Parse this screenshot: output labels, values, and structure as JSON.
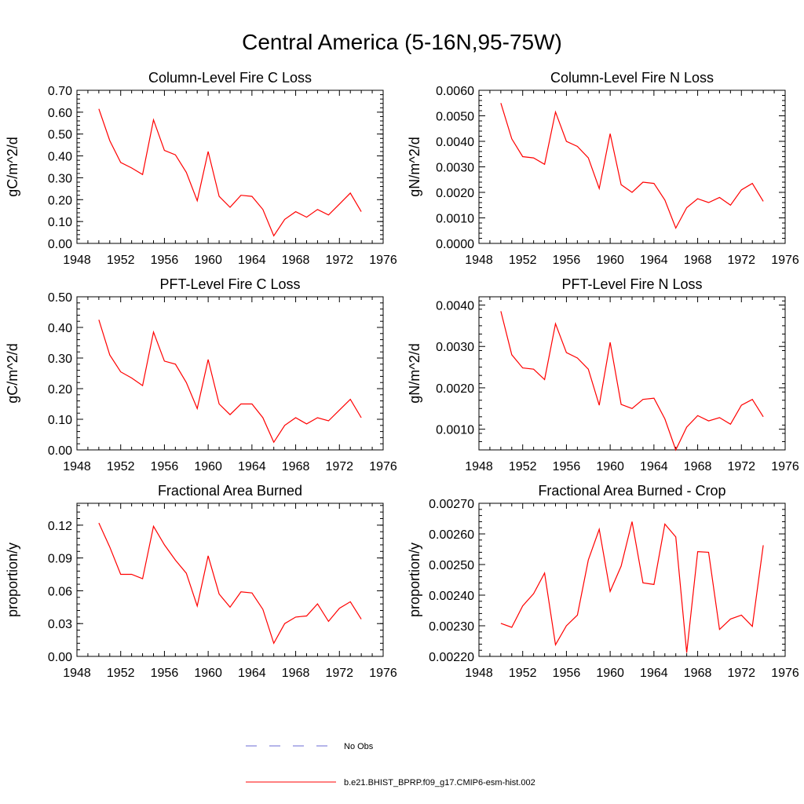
{
  "figure_title": "Central America (5-16N,95-75W)",
  "colors": {
    "model": "#ff0000",
    "obs": "#6b6bd6",
    "axis": "#000000"
  },
  "legend": {
    "items": [
      {
        "label": "No Obs",
        "style": "dashed"
      },
      {
        "label": "b.e21.BHIST_BPRP.f09_g17.CMIP6-esm-hist.002",
        "style": "solid"
      }
    ]
  },
  "chart_data": [
    {
      "type": "line",
      "title": "Column-Level Fire C Loss",
      "ylabel": "gC/m^2/d",
      "xlim": [
        1948,
        1976
      ],
      "xticks": [
        "1948",
        "1952",
        "1956",
        "1960",
        "1964",
        "1968",
        "1972",
        "1976"
      ],
      "ylim": [
        0,
        0.7
      ],
      "yticks": [
        "0.00",
        "0.10",
        "0.20",
        "0.30",
        "0.40",
        "0.50",
        "0.60",
        "0.70"
      ],
      "ytick_values": [
        0,
        0.1,
        0.2,
        0.3,
        0.4,
        0.5,
        0.6,
        0.7
      ],
      "x": [
        1950,
        1951,
        1952,
        1953,
        1954,
        1955,
        1956,
        1957,
        1958,
        1959,
        1960,
        1961,
        1962,
        1963,
        1964,
        1965,
        1966,
        1967,
        1968,
        1969,
        1970,
        1971,
        1972,
        1973,
        1974
      ],
      "series": [
        {
          "values": [
            0.615,
            0.47,
            0.37,
            0.345,
            0.315,
            0.565,
            0.425,
            0.405,
            0.325,
            0.195,
            0.42,
            0.215,
            0.165,
            0.22,
            0.215,
            0.155,
            0.035,
            0.11,
            0.145,
            0.12,
            0.155,
            0.13,
            0.18,
            0.23,
            0.145
          ]
        }
      ]
    },
    {
      "type": "line",
      "title": "Column-Level Fire N Loss",
      "ylabel": "gN/m^2/d",
      "xlim": [
        1948,
        1976
      ],
      "xticks": [
        "1948",
        "1952",
        "1956",
        "1960",
        "1964",
        "1968",
        "1972",
        "1976"
      ],
      "ylim": [
        0,
        0.006
      ],
      "yticks": [
        "0.0000",
        "0.0010",
        "0.0020",
        "0.0030",
        "0.0040",
        "0.0050",
        "0.0060"
      ],
      "ytick_values": [
        0,
        0.001,
        0.002,
        0.003,
        0.004,
        0.005,
        0.006
      ],
      "x": [
        1950,
        1951,
        1952,
        1953,
        1954,
        1955,
        1956,
        1957,
        1958,
        1959,
        1960,
        1961,
        1962,
        1963,
        1964,
        1965,
        1966,
        1967,
        1968,
        1969,
        1970,
        1971,
        1972,
        1973,
        1974
      ],
      "series": [
        {
          "values": [
            0.0055,
            0.0041,
            0.0034,
            0.00335,
            0.0031,
            0.00515,
            0.004,
            0.0038,
            0.00335,
            0.00215,
            0.0043,
            0.0023,
            0.002,
            0.0024,
            0.00235,
            0.0017,
            0.0006,
            0.0014,
            0.00175,
            0.0016,
            0.0018,
            0.0015,
            0.0021,
            0.00235,
            0.00165
          ]
        }
      ]
    },
    {
      "type": "line",
      "title": "PFT-Level Fire C Loss",
      "ylabel": "gC/m^2/d",
      "xlim": [
        1948,
        1976
      ],
      "xticks": [
        "1948",
        "1952",
        "1956",
        "1960",
        "1964",
        "1968",
        "1972",
        "1976"
      ],
      "ylim": [
        0,
        0.5
      ],
      "yticks": [
        "0.00",
        "0.10",
        "0.20",
        "0.30",
        "0.40",
        "0.50"
      ],
      "ytick_values": [
        0,
        0.1,
        0.2,
        0.3,
        0.4,
        0.5
      ],
      "x": [
        1950,
        1951,
        1952,
        1953,
        1954,
        1955,
        1956,
        1957,
        1958,
        1959,
        1960,
        1961,
        1962,
        1963,
        1964,
        1965,
        1966,
        1967,
        1968,
        1969,
        1970,
        1971,
        1972,
        1973,
        1974
      ],
      "series": [
        {
          "values": [
            0.425,
            0.31,
            0.255,
            0.235,
            0.21,
            0.385,
            0.29,
            0.28,
            0.22,
            0.135,
            0.295,
            0.15,
            0.115,
            0.15,
            0.15,
            0.105,
            0.025,
            0.08,
            0.105,
            0.085,
            0.105,
            0.095,
            0.13,
            0.165,
            0.105
          ]
        }
      ]
    },
    {
      "type": "line",
      "title": "PFT-Level Fire N Loss",
      "ylabel": "gN/m^2/d",
      "xlim": [
        1948,
        1976
      ],
      "xticks": [
        "1948",
        "1952",
        "1956",
        "1960",
        "1964",
        "1968",
        "1972",
        "1976"
      ],
      "ylim": [
        0.0005,
        0.0042
      ],
      "yticks": [
        "0.0010",
        "0.0020",
        "0.0030",
        "0.0040"
      ],
      "ytick_values": [
        0.001,
        0.002,
        0.003,
        0.004
      ],
      "x": [
        1950,
        1951,
        1952,
        1953,
        1954,
        1955,
        1956,
        1957,
        1958,
        1959,
        1960,
        1961,
        1962,
        1963,
        1964,
        1965,
        1966,
        1967,
        1968,
        1969,
        1970,
        1971,
        1972,
        1973,
        1974
      ],
      "series": [
        {
          "values": [
            0.00385,
            0.0028,
            0.00248,
            0.00245,
            0.0022,
            0.00355,
            0.00285,
            0.00272,
            0.00245,
            0.00158,
            0.0031,
            0.0016,
            0.0015,
            0.00172,
            0.00175,
            0.00125,
            0.0005,
            0.00105,
            0.00133,
            0.0012,
            0.00128,
            0.00112,
            0.00158,
            0.00172,
            0.0013
          ]
        }
      ]
    },
    {
      "type": "line",
      "title": "Fractional Area Burned",
      "ylabel": "proportion/y",
      "xlim": [
        1948,
        1976
      ],
      "xticks": [
        "1948",
        "1952",
        "1956",
        "1960",
        "1964",
        "1968",
        "1972",
        "1976"
      ],
      "ylim": [
        0,
        0.14
      ],
      "yticks": [
        "0.00",
        "0.03",
        "0.06",
        "0.09",
        "0.12"
      ],
      "ytick_values": [
        0,
        0.03,
        0.06,
        0.09,
        0.12
      ],
      "x": [
        1950,
        1951,
        1952,
        1953,
        1954,
        1955,
        1956,
        1957,
        1958,
        1959,
        1960,
        1961,
        1962,
        1963,
        1964,
        1965,
        1966,
        1967,
        1968,
        1969,
        1970,
        1971,
        1972,
        1973,
        1974
      ],
      "series": [
        {
          "values": [
            0.122,
            0.1,
            0.075,
            0.075,
            0.071,
            0.119,
            0.102,
            0.088,
            0.076,
            0.046,
            0.092,
            0.057,
            0.045,
            0.059,
            0.058,
            0.043,
            0.012,
            0.03,
            0.036,
            0.037,
            0.048,
            0.032,
            0.044,
            0.05,
            0.034
          ]
        }
      ]
    },
    {
      "type": "line",
      "title": "Fractional Area Burned - Crop",
      "ylabel": "proportion/y",
      "xlim": [
        1948,
        1976
      ],
      "xticks": [
        "1948",
        "1952",
        "1956",
        "1960",
        "1964",
        "1968",
        "1972",
        "1976"
      ],
      "ylim": [
        0.0022,
        0.0027
      ],
      "yticks": [
        "0.00220",
        "0.00230",
        "0.00240",
        "0.00250",
        "0.00260",
        "0.00270"
      ],
      "ytick_values": [
        0.0022,
        0.0023,
        0.0024,
        0.0025,
        0.0026,
        0.0027
      ],
      "x": [
        1950,
        1951,
        1952,
        1953,
        1954,
        1955,
        1956,
        1957,
        1958,
        1959,
        1960,
        1961,
        1962,
        1963,
        1964,
        1965,
        1966,
        1967,
        1968,
        1969,
        1970,
        1971,
        1972,
        1973,
        1974
      ],
      "series": [
        {
          "values": [
            0.002308,
            0.002295,
            0.002365,
            0.002405,
            0.002472,
            0.002238,
            0.0023,
            0.002335,
            0.002515,
            0.002615,
            0.002412,
            0.002495,
            0.00264,
            0.00244,
            0.002435,
            0.002632,
            0.00259,
            0.002212,
            0.002542,
            0.00254,
            0.002288,
            0.002322,
            0.002335,
            0.002298,
            0.002563
          ]
        }
      ]
    }
  ]
}
